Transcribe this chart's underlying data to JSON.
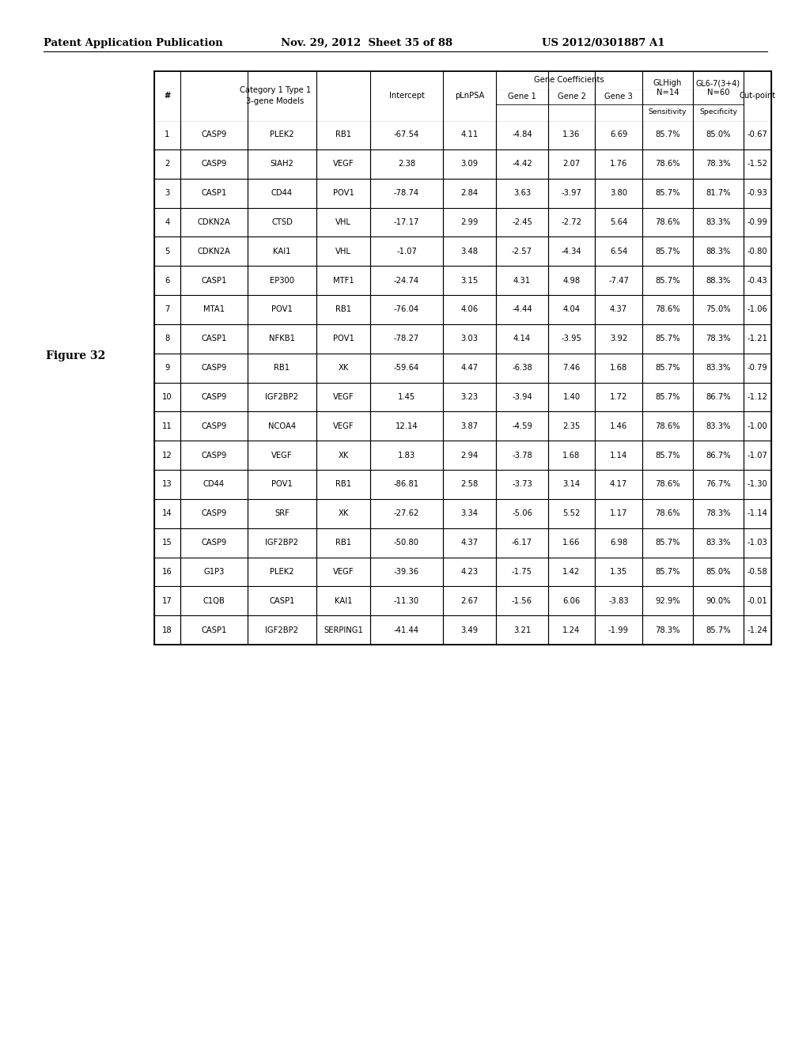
{
  "header_line1": "Patent Application Publication",
  "header_line2": "Nov. 29, 2012  Sheet 35 of 88",
  "header_line3": "US 2012/0301887 A1",
  "figure_label": "Figure 32",
  "rows": [
    [
      "1",
      "CASP9",
      "PLEK2",
      "RB1",
      "-67.54",
      "4.11",
      "-4.84",
      "1.36",
      "6.69",
      "85.7%",
      "85.0%",
      "-0.67"
    ],
    [
      "2",
      "CASP9",
      "SIAH2",
      "VEGF",
      "2.38",
      "3.09",
      "-4.42",
      "2.07",
      "1.76",
      "78.6%",
      "78.3%",
      "-1.52"
    ],
    [
      "3",
      "CASP1",
      "CD44",
      "POV1",
      "-78.74",
      "2.84",
      "3.63",
      "-3.97",
      "3.80",
      "85.7%",
      "81.7%",
      "-0.93"
    ],
    [
      "4",
      "CDKN2A",
      "CTSD",
      "VHL",
      "-17.17",
      "2.99",
      "-2.45",
      "-2.72",
      "5.64",
      "78.6%",
      "83.3%",
      "-0.99"
    ],
    [
      "5",
      "CDKN2A",
      "KAI1",
      "VHL",
      "-1.07",
      "3.48",
      "-2.57",
      "-4.34",
      "6.54",
      "85.7%",
      "88.3%",
      "-0.80"
    ],
    [
      "6",
      "CASP1",
      "EP300",
      "MTF1",
      "-24.74",
      "3.15",
      "4.31",
      "4.98",
      "-7.47",
      "85.7%",
      "88.3%",
      "-0.43"
    ],
    [
      "7",
      "MTA1",
      "POV1",
      "RB1",
      "-76.04",
      "4.06",
      "-4.44",
      "4.04",
      "4.37",
      "78.6%",
      "75.0%",
      "-1.06"
    ],
    [
      "8",
      "CASP1",
      "NFKB1",
      "POV1",
      "-78.27",
      "3.03",
      "4.14",
      "-3.95",
      "3.92",
      "85.7%",
      "78.3%",
      "-1.21"
    ],
    [
      "9",
      "CASP9",
      "RB1",
      "XK",
      "-59.64",
      "4.47",
      "-6.38",
      "7.46",
      "1.68",
      "85.7%",
      "83.3%",
      "-0.79"
    ],
    [
      "10",
      "CASP9",
      "IGF2BP2",
      "VEGF",
      "1.45",
      "3.23",
      "-3.94",
      "1.40",
      "1.72",
      "85.7%",
      "86.7%",
      "-1.12"
    ],
    [
      "11",
      "CASP9",
      "NCOA4",
      "VEGF",
      "12.14",
      "3.87",
      "-4.59",
      "2.35",
      "1.46",
      "78.6%",
      "83.3%",
      "-1.00"
    ],
    [
      "12",
      "CASP9",
      "VEGF",
      "XK",
      "1.83",
      "2.94",
      "-3.78",
      "1.68",
      "1.14",
      "85.7%",
      "86.7%",
      "-1.07"
    ],
    [
      "13",
      "CD44",
      "POV1",
      "RB1",
      "-86.81",
      "2.58",
      "-3.73",
      "3.14",
      "4.17",
      "78.6%",
      "76.7%",
      "-1.30"
    ],
    [
      "14",
      "CASP9",
      "SRF",
      "XK",
      "-27.62",
      "3.34",
      "-5.06",
      "5.52",
      "1.17",
      "78.6%",
      "78.3%",
      "-1.14"
    ],
    [
      "15",
      "CASP9",
      "IGF2BP2",
      "RB1",
      "-50.80",
      "4.37",
      "-6.17",
      "1.66",
      "6.98",
      "85.7%",
      "83.3%",
      "-1.03"
    ],
    [
      "16",
      "G1P3",
      "PLEK2",
      "VEGF",
      "-39.36",
      "4.23",
      "-1.75",
      "1.42",
      "1.35",
      "85.7%",
      "85.0%",
      "-0.58"
    ],
    [
      "17",
      "C1QB",
      "CASP1",
      "KAI1",
      "-11.30",
      "2.67",
      "-1.56",
      "6.06",
      "-3.83",
      "92.9%",
      "90.0%",
      "-0.01"
    ],
    [
      "18",
      "CASP1",
      "IGF2BP2",
      "SERPING1",
      "-41.44",
      "3.49",
      "3.21",
      "1.24",
      "-1.99",
      "78.3%",
      "85.7%",
      "-1.24"
    ]
  ],
  "background_color": "#ffffff",
  "border_color": "#000000"
}
